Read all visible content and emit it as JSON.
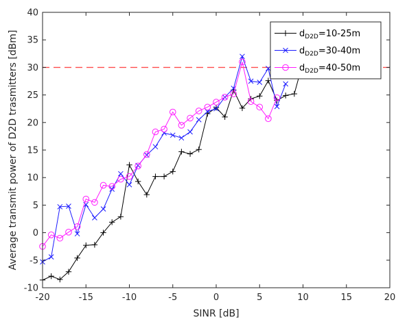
{
  "chart_data": {
    "type": "line",
    "xlabel": "SINR [dB]",
    "ylabel": "Average transmit power of D2D trasmitters [dBm]",
    "xlim": [
      -20,
      20
    ],
    "ylim": [
      -10,
      40
    ],
    "xticks": [
      "-20",
      "-15",
      "-10",
      "-5",
      "0",
      "5",
      "10",
      "15",
      "20"
    ],
    "yticks": [
      "-10",
      "-5",
      "0",
      "5",
      "10",
      "15",
      "20",
      "25",
      "30",
      "35",
      "40"
    ],
    "grid": false,
    "legend_position": "top-right",
    "reference_line": {
      "y": 30,
      "color": "#ff4d4d",
      "style": "dashed"
    },
    "series": [
      {
        "legend_main": "d",
        "legend_sub": "D2D",
        "legend_tail": "=10-25m",
        "color": "#000000",
        "marker": "plus",
        "x": [
          -20,
          -19,
          -18,
          -17,
          -16,
          -15,
          -14,
          -13,
          -12,
          -11,
          -10,
          -9,
          -8,
          -7,
          -6,
          -5,
          -4,
          -3,
          -2,
          -1,
          0,
          1,
          2,
          3,
          4,
          5,
          6,
          7,
          8,
          9,
          10
        ],
        "y": [
          -8.6,
          -7.9,
          -8.5,
          -7.1,
          -4.6,
          -2.3,
          -2.2,
          0.0,
          1.9,
          2.9,
          12.3,
          9.3,
          6.9,
          10.2,
          10.2,
          11.1,
          14.7,
          14.3,
          15.1,
          21.6,
          22.7,
          21.0,
          25.9,
          22.6,
          24.3,
          24.8,
          27.6,
          24.0,
          24.9,
          25.2,
          31.0
        ]
      },
      {
        "legend_main": "d",
        "legend_sub": "D2D",
        "legend_tail": "=30-40m",
        "color": "#1a1aff",
        "marker": "cross",
        "x": [
          -20,
          -19,
          -18,
          -17,
          -16,
          -15,
          -14,
          -13,
          -12,
          -11,
          -10,
          -9,
          -8,
          -7,
          -6,
          -5,
          -4,
          -3,
          -2,
          -1,
          0,
          1,
          2,
          3,
          4,
          5,
          6,
          7,
          8
        ],
        "y": [
          -5.3,
          -4.4,
          4.7,
          4.8,
          -0.2,
          5.1,
          2.7,
          4.3,
          7.9,
          10.7,
          8.7,
          12.2,
          14.1,
          15.6,
          18.1,
          17.7,
          17.2,
          18.3,
          20.5,
          22.0,
          22.5,
          24.6,
          26.2,
          32.0,
          27.5,
          27.3,
          29.8,
          22.9,
          27.0
        ]
      },
      {
        "legend_main": "d",
        "legend_sub": "D2D",
        "legend_tail": "=40-50m",
        "color": "#ff1aff",
        "marker": "circle",
        "x": [
          -20,
          -19,
          -18,
          -17,
          -16,
          -15,
          -14,
          -13,
          -12,
          -11,
          -10,
          -9,
          -8,
          -7,
          -6,
          -5,
          -4,
          -3,
          -2,
          -1,
          0,
          1,
          2,
          3,
          4,
          5,
          6,
          7
        ],
        "y": [
          -2.5,
          -0.4,
          -1.0,
          0.1,
          1.1,
          6.1,
          5.5,
          8.6,
          8.4,
          9.7,
          10.2,
          12.1,
          14.2,
          18.3,
          18.8,
          21.9,
          19.5,
          20.8,
          22.1,
          22.8,
          23.7,
          24.6,
          25.2,
          31.0,
          23.8,
          22.8,
          20.7,
          24.5
        ]
      }
    ]
  }
}
